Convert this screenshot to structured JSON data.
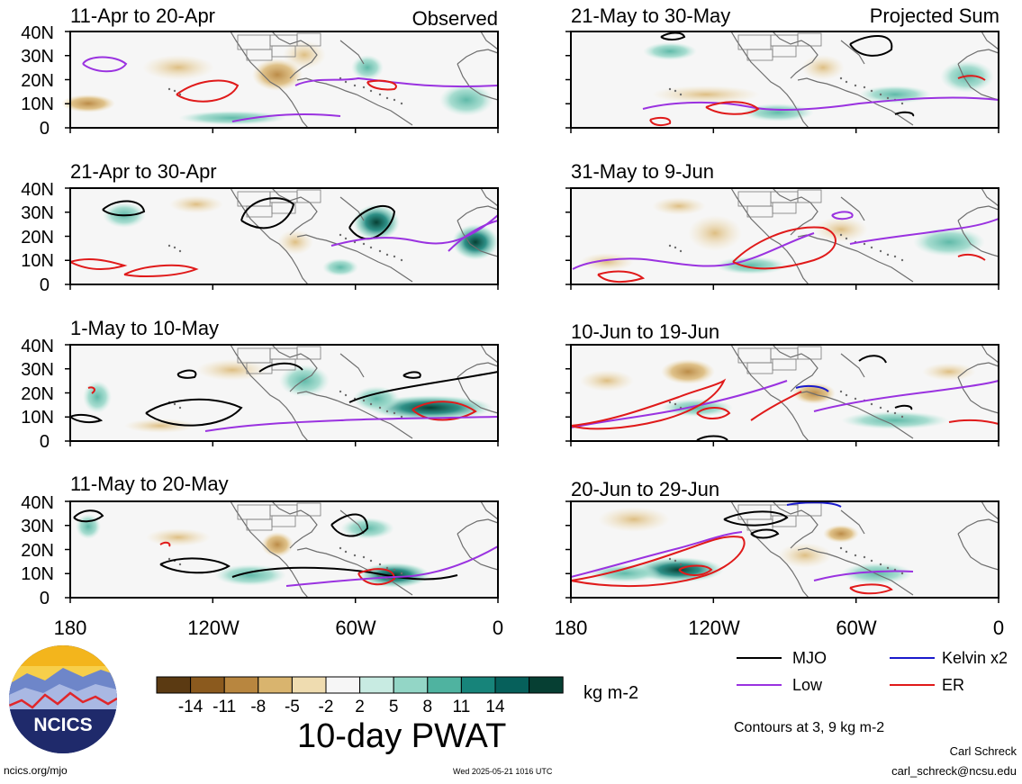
{
  "branding": {
    "logo_text": "NCICS",
    "site_url": "ncics.org/mjo",
    "timestamp": "Wed 2025-05-21 1016 UTC",
    "author_name": "Carl Schreck",
    "author_email": "carl_schreck@ncsu.edu"
  },
  "product_title": "10-day PWAT",
  "units": "kg m-2",
  "contours_note": "Contours at 3, 9 kg m-2",
  "columns": [
    {
      "label": "Observed"
    },
    {
      "label": "Projected Sum"
    }
  ],
  "panels": [
    {
      "title": "11-Apr to 20-Apr"
    },
    {
      "title": "21-Apr to 30-Apr"
    },
    {
      "title": "1-May to 10-May"
    },
    {
      "title": "11-May to 20-May"
    },
    {
      "title": "21-May to 30-May"
    },
    {
      "title": "31-May to 9-Jun"
    },
    {
      "title": "10-Jun to 19-Jun"
    },
    {
      "title": "20-Jun to 29-Jun"
    }
  ],
  "lat_ticks": [
    "40N",
    "30N",
    "20N",
    "10N",
    "0"
  ],
  "lon_ticks": [
    "180",
    "120W",
    "60W",
    "0"
  ],
  "colorbar": {
    "colors": [
      "#5b3a12",
      "#8b5a1e",
      "#b8863f",
      "#d9b46e",
      "#efdcb0",
      "#f6f6f6",
      "#c8ebe2",
      "#93d6c6",
      "#4fb3a0",
      "#17847a",
      "#06605b",
      "#063f33"
    ],
    "labels": [
      "-14",
      "-11",
      "-8",
      "-5",
      "-2",
      "2",
      "5",
      "8",
      "11",
      "14"
    ]
  },
  "legend": [
    {
      "label": "MJO",
      "color": "#000000"
    },
    {
      "label": "Kelvin x2",
      "color": "#1a1acc"
    },
    {
      "label": "Low",
      "color": "#9a32e0"
    },
    {
      "label": "ER",
      "color": "#e01a1a"
    }
  ]
}
